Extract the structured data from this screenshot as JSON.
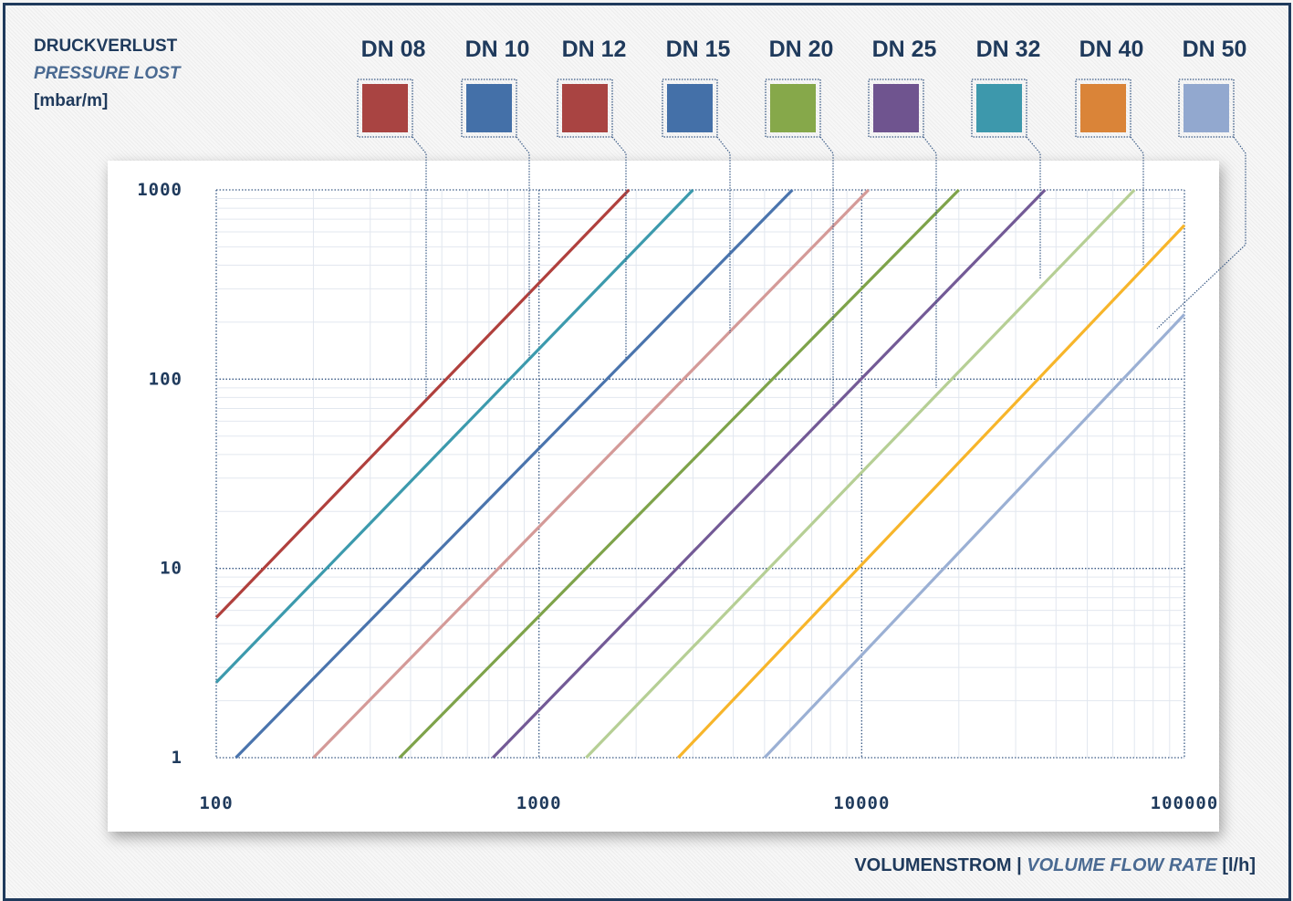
{
  "y_label": {
    "de": "DRUCKVERLUST",
    "en": "PRESSURE LOST",
    "unit": "[mbar/m]"
  },
  "x_label": {
    "de": "VOLUMENSTROM",
    "sep": " | ",
    "en": "VOLUME FLOW RATE",
    "unit": " [l/h]"
  },
  "legend": [
    {
      "name": "DN 08",
      "color": "#a94442"
    },
    {
      "name": "DN 10",
      "color": "#4470a8"
    },
    {
      "name": "DN 12",
      "color": "#a94442"
    },
    {
      "name": "DN 15",
      "color": "#4470a8"
    },
    {
      "name": "DN 20",
      "color": "#86a84a"
    },
    {
      "name": "DN 25",
      "color": "#6f548f"
    },
    {
      "name": "DN 32",
      "color": "#3d98ac"
    },
    {
      "name": "DN 40",
      "color": "#da8438"
    },
    {
      "name": "DN 50",
      "color": "#92a8cf"
    }
  ],
  "chart_data": {
    "type": "line",
    "x_scale": "log",
    "y_scale": "log",
    "xlim": [
      100,
      100000
    ],
    "ylim": [
      1,
      1000
    ],
    "x_ticks": [
      "100",
      "1000",
      "10000",
      "100000"
    ],
    "y_ticks": [
      "1000",
      "100",
      "10",
      "1"
    ],
    "grid": true,
    "series": [
      {
        "name": "DN 08",
        "color": "#b0403d",
        "points": [
          [
            100,
            5.5
          ],
          [
            1900,
            1000
          ]
        ]
      },
      {
        "name": "DN 10",
        "color": "#3c9aad",
        "points": [
          [
            100,
            2.5
          ],
          [
            3000,
            1000
          ]
        ]
      },
      {
        "name": "DN 12",
        "color": "#4a74ad",
        "points": [
          [
            115,
            1
          ],
          [
            6100,
            1000
          ]
        ]
      },
      {
        "name": "DN 15",
        "color": "#d49a98",
        "points": [
          [
            200,
            1
          ],
          [
            10500,
            1000
          ]
        ]
      },
      {
        "name": "DN 20",
        "color": "#7ea34a",
        "points": [
          [
            370,
            1
          ],
          [
            20000,
            1000
          ]
        ]
      },
      {
        "name": "DN 25",
        "color": "#735a96",
        "points": [
          [
            720,
            1
          ],
          [
            37000,
            1000
          ]
        ]
      },
      {
        "name": "DN 32",
        "color": "#b6cf95",
        "points": [
          [
            1400,
            1
          ],
          [
            70000,
            1000
          ]
        ]
      },
      {
        "name": "DN 40",
        "color": "#f7b52a",
        "points": [
          [
            2700,
            1
          ],
          [
            100000,
            650
          ]
        ]
      },
      {
        "name": "DN 50",
        "color": "#9bb0d4",
        "points": [
          [
            5000,
            1
          ],
          [
            100000,
            220
          ]
        ]
      }
    ]
  }
}
